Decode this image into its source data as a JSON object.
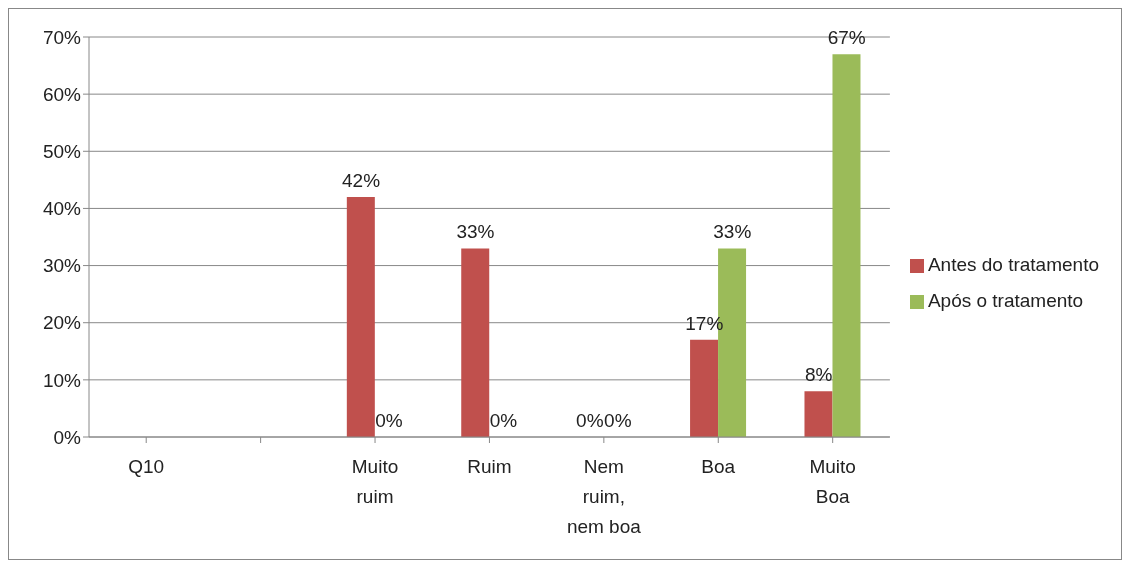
{
  "chart_data": {
    "type": "bar",
    "categories": [
      "Q10",
      null,
      "Muito ruim",
      "Ruim",
      "Nem ruim, nem boa",
      "Boa",
      "Muito Boa"
    ],
    "series": [
      {
        "name": "Antes do tratamento",
        "color": "#c0504d",
        "values": [
          null,
          null,
          42,
          33,
          0,
          17,
          8
        ],
        "value_labels": [
          null,
          null,
          "42%",
          "33%",
          "0%",
          "17%",
          "8%"
        ]
      },
      {
        "name": "Após o tratamento",
        "color": "#9bbb59",
        "values": [
          null,
          null,
          0,
          0,
          0,
          33,
          67
        ],
        "value_labels": [
          null,
          null,
          "0%",
          "0%",
          "0%",
          "33%",
          "67%"
        ]
      }
    ],
    "ylim": [
      0,
      70
    ],
    "yticks": [
      {
        "value": 0,
        "label": "0%"
      },
      {
        "value": 10,
        "label": "10%"
      },
      {
        "value": 20,
        "label": "20%"
      },
      {
        "value": 30,
        "label": "30%"
      },
      {
        "value": 40,
        "label": "40%"
      },
      {
        "value": 50,
        "label": "50%"
      },
      {
        "value": 60,
        "label": "60%"
      },
      {
        "value": 70,
        "label": "70%"
      }
    ],
    "grid": "y",
    "legend": "right"
  }
}
